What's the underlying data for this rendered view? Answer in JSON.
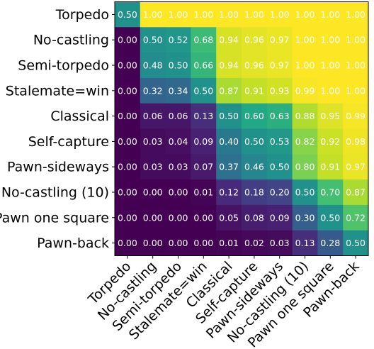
{
  "chart_data": {
    "type": "heatmap",
    "title": "",
    "xlabel": "",
    "ylabel": "",
    "colormap": "viridis",
    "value_range": [
      0,
      1
    ],
    "rows": [
      "Torpedo",
      "No-castling",
      "Semi-torpedo",
      "Stalemate=win",
      "Classical",
      "Self-capture",
      "Pawn-sideways",
      "No-castling (10)",
      "Pawn one square",
      "Pawn-back"
    ],
    "columns": [
      "Torpedo",
      "No-castling",
      "Semi-torpedo",
      "Stalemate=win",
      "Classical",
      "Self-capture",
      "Pawn-sideways",
      "No-castling (10)",
      "Pawn one square",
      "Pawn-back"
    ],
    "values": [
      [
        0.5,
        1.0,
        1.0,
        1.0,
        1.0,
        1.0,
        1.0,
        1.0,
        1.0,
        1.0
      ],
      [
        0.0,
        0.5,
        0.52,
        0.68,
        0.94,
        0.96,
        0.97,
        1.0,
        1.0,
        1.0
      ],
      [
        0.0,
        0.48,
        0.5,
        0.66,
        0.94,
        0.96,
        0.97,
        1.0,
        1.0,
        1.0
      ],
      [
        0.0,
        0.32,
        0.34,
        0.5,
        0.87,
        0.91,
        0.93,
        0.99,
        1.0,
        1.0
      ],
      [
        0.0,
        0.06,
        0.06,
        0.13,
        0.5,
        0.6,
        0.63,
        0.88,
        0.95,
        0.99
      ],
      [
        0.0,
        0.03,
        0.04,
        0.09,
        0.4,
        0.5,
        0.53,
        0.82,
        0.92,
        0.98
      ],
      [
        0.0,
        0.03,
        0.03,
        0.07,
        0.37,
        0.46,
        0.5,
        0.8,
        0.91,
        0.97
      ],
      [
        0.0,
        0.0,
        0.0,
        0.01,
        0.12,
        0.18,
        0.2,
        0.5,
        0.7,
        0.87
      ],
      [
        0.0,
        0.0,
        0.0,
        0.0,
        0.05,
        0.08,
        0.09,
        0.3,
        0.5,
        0.72
      ],
      [
        0.0,
        0.0,
        0.0,
        0.0,
        0.01,
        0.02,
        0.03,
        0.13,
        0.28,
        0.5
      ]
    ]
  }
}
